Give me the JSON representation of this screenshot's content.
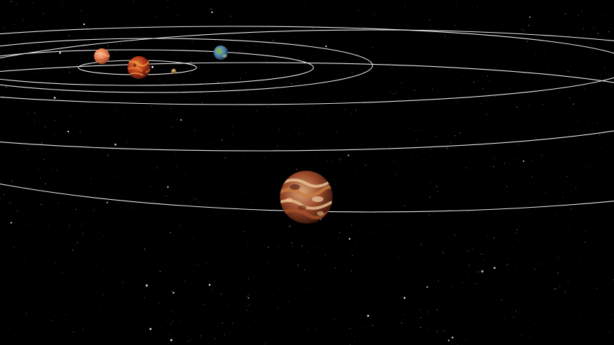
{
  "scene": {
    "background": "#000000",
    "orbit_color": "#e6e6e6",
    "star_color": "#ffffff"
  },
  "bodies": [
    {
      "key": "mercury",
      "name": "planet-small-tan",
      "colors": [
        "#c9a45a",
        "#8a6b2e"
      ]
    },
    {
      "key": "venus",
      "name": "planet-orange",
      "colors": [
        "#f08a5a",
        "#c85a36",
        "#f2b48a"
      ]
    },
    {
      "key": "mars",
      "name": "planet-red-lava",
      "colors": [
        "#b3361c",
        "#e07a2a",
        "#6a1a10"
      ]
    },
    {
      "key": "earth",
      "name": "planet-blue-green",
      "colors": [
        "#4a7fa6",
        "#6aa05a",
        "#2c5070"
      ]
    },
    {
      "key": "jupiter",
      "name": "planet-large-mottled",
      "colors": [
        "#8a3a22",
        "#d7b08a",
        "#b8622e",
        "#5a2418"
      ]
    }
  ]
}
